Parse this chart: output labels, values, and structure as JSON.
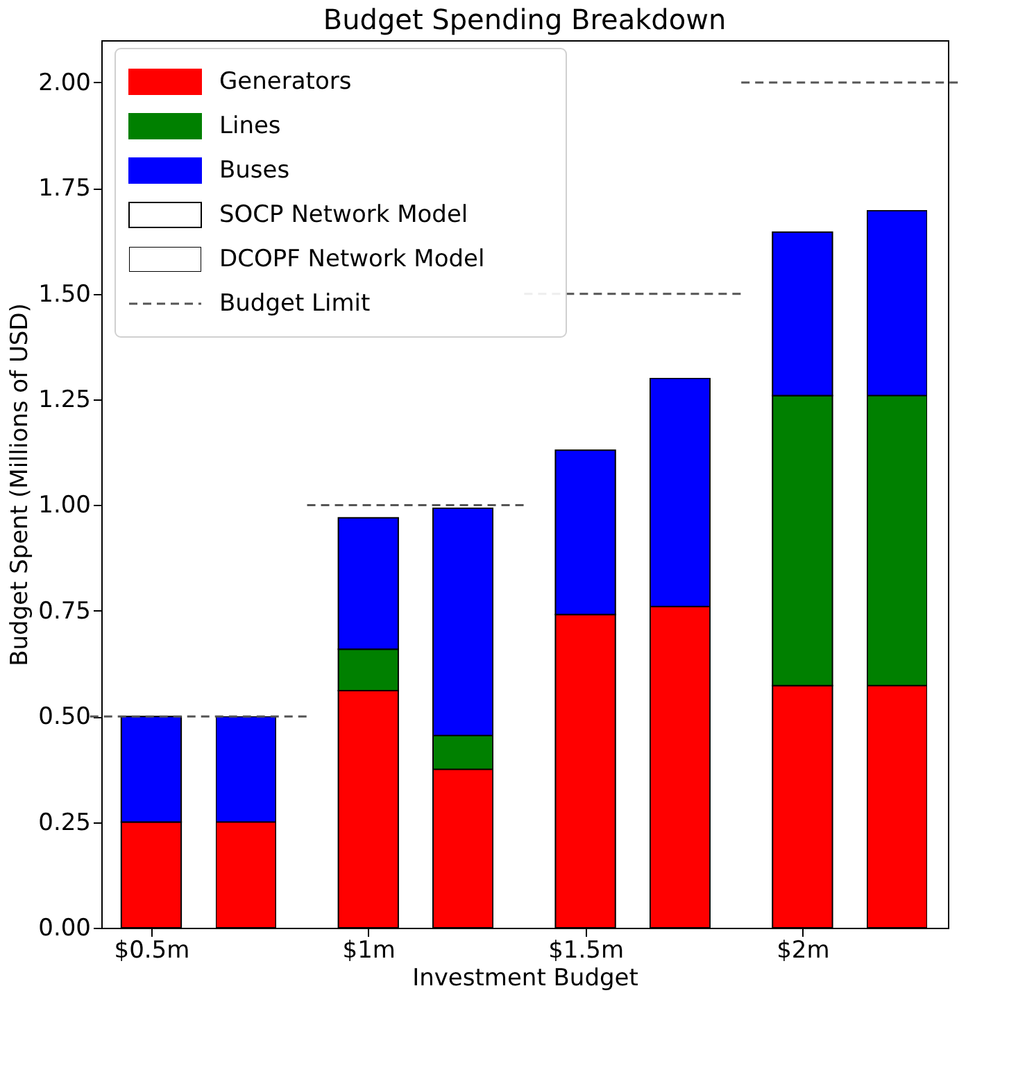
{
  "chart_data": {
    "type": "bar",
    "title": "Budget Spending Breakdown",
    "xlabel": "Investment Budget",
    "ylabel": "Budget Spent (Millions of USD)",
    "categories": [
      "$0.5m",
      null,
      "$1m",
      null,
      "$1.5m",
      null,
      "$2m",
      null
    ],
    "stacked": true,
    "series": [
      {
        "name": "Generators",
        "color": "#ff0000",
        "values": [
          0.25,
          null,
          0.561,
          null,
          0.741,
          null,
          0.573,
          null
        ]
      },
      {
        "name": "Lines",
        "color": "#008000",
        "values": [
          0,
          null,
          0.098,
          null,
          0,
          null,
          0.686,
          null
        ]
      },
      {
        "name": "Buses",
        "color": "#0000ff",
        "values": [
          0.25,
          null,
          0.311,
          null,
          0.389,
          null,
          0.387,
          null
        ]
      },
      {
        "color": "#ff0000",
        "values": [
          null,
          0.25,
          null,
          0.375,
          null,
          0.76,
          null,
          0.573
        ]
      },
      {
        "color": "#008000",
        "values": [
          null,
          0,
          null,
          0.08,
          null,
          0,
          null,
          0.686
        ]
      },
      {
        "color": "#0000ff",
        "values": [
          null,
          0.25,
          null,
          0.538,
          null,
          0.54,
          null,
          0.438
        ]
      }
    ],
    "ylim": [
      0,
      2.1
    ],
    "yticks": [
      {
        "value": 0,
        "label": "0.00"
      },
      {
        "value": 0.25,
        "label": "0.25"
      },
      {
        "value": 0.5,
        "label": "0.50"
      },
      {
        "value": 0.75,
        "label": "0.75"
      },
      {
        "value": 1,
        "label": "1.00"
      },
      {
        "value": 1.25,
        "label": "1.25"
      },
      {
        "value": 1.5,
        "label": "1.50"
      },
      {
        "value": 1.75,
        "label": "1.75"
      },
      {
        "value": 2,
        "label": "2.00"
      }
    ],
    "ref_lines": [
      {
        "axis": "y",
        "value": 0.5,
        "label": "Budget Limit",
        "color": "#555555",
        "line_style": "dashed"
      },
      {
        "axis": "y",
        "value": 1.0,
        "label": null,
        "color": "#555555",
        "line_style": "dashed"
      },
      {
        "axis": "y",
        "value": 1.5,
        "label": null,
        "color": "#555555",
        "line_style": "dashed"
      },
      {
        "axis": "y",
        "value": 2.0,
        "label": null,
        "color": "#555555",
        "line_style": "dashed"
      }
    ],
    "annotations": [
      "SOCP Network Model",
      "DCOPF Network Model"
    ],
    "legend": "top left",
    "grid": false
  }
}
